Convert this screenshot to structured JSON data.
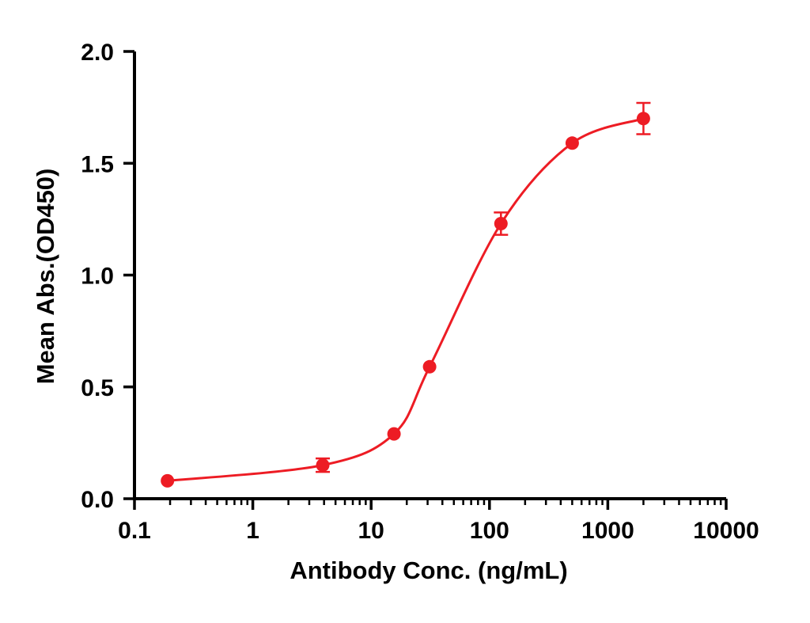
{
  "chart_data": {
    "type": "scatter",
    "subtype": "sigmoidal-dose-response",
    "title": "",
    "xlabel": "Antibody Conc. (ng/mL)",
    "ylabel": "Mean Abs.(OD450)",
    "x_scale": "log10",
    "xlim": [
      0.1,
      10000
    ],
    "ylim": [
      0.0,
      2.0
    ],
    "x_tick_values": [
      0.1,
      1,
      10,
      100,
      1000,
      10000
    ],
    "x_tick_labels": [
      "0.1",
      "1",
      "10",
      "100",
      "1000",
      "10000"
    ],
    "y_tick_values": [
      0.0,
      0.5,
      1.0,
      1.5,
      2.0
    ],
    "y_tick_labels": [
      "0.0",
      "0.5",
      "1.0",
      "1.5",
      "2.0"
    ],
    "grid": false,
    "legend": "none",
    "axis_color": "#000000",
    "series": [
      {
        "name": "Mean Abs.(OD450)",
        "color": "#ED1C24",
        "marker": "circle",
        "fit": "4PL sigmoidal curve through points",
        "x": [
          0.19,
          3.9,
          15.6,
          31.2,
          125,
          500,
          2000
        ],
        "y": [
          0.08,
          0.15,
          0.29,
          0.59,
          1.23,
          1.59,
          1.7
        ],
        "y_err": [
          0,
          0.03,
          0,
          0,
          0.05,
          0,
          0.07
        ]
      }
    ]
  }
}
